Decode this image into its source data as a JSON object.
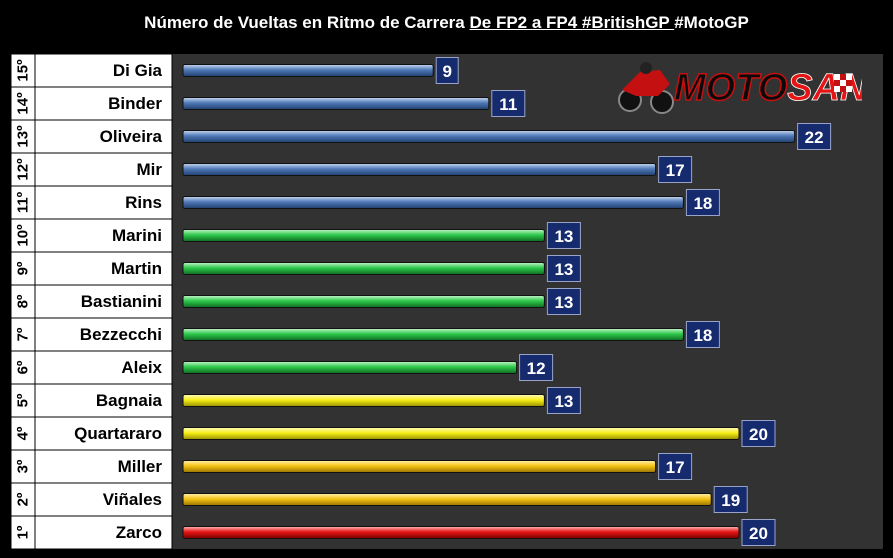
{
  "title": {
    "main": "Número de Vueltas  en Ritmo  de Carrera",
    "underlined": "De FP2 a FP4 #BritishGP ",
    "tail": " #MotoGP"
  },
  "logo": {
    "text_black": "MOTO",
    "text_red": "SAN"
  },
  "colors": {
    "background": "#000000",
    "plot_bg": "#323232",
    "label_bg": "#ffffff",
    "blue": "#4f79b8",
    "green": "#2ec94c",
    "yellow": "#f7ef18",
    "gold": "#f5c415",
    "red": "#e61515",
    "value_box": "#162a6e"
  },
  "chart_data": {
    "type": "bar",
    "orientation": "horizontal",
    "xlim": [
      0,
      24
    ],
    "grid": false,
    "rows": [
      {
        "position": "15º",
        "rider": "Di Gia",
        "value": 9,
        "color": "blue"
      },
      {
        "position": "14º",
        "rider": "Binder",
        "value": 11,
        "color": "blue"
      },
      {
        "position": "13º",
        "rider": "Oliveira",
        "value": 22,
        "color": "blue"
      },
      {
        "position": "12º",
        "rider": "Mir",
        "value": 17,
        "color": "blue"
      },
      {
        "position": "11º",
        "rider": "Rins",
        "value": 18,
        "color": "blue"
      },
      {
        "position": "10º",
        "rider": "Marini",
        "value": 13,
        "color": "green"
      },
      {
        "position": "9º",
        "rider": "Martin",
        "value": 13,
        "color": "green"
      },
      {
        "position": "8º",
        "rider": "Bastianini",
        "value": 13,
        "color": "green"
      },
      {
        "position": "7º",
        "rider": "Bezzecchi",
        "value": 18,
        "color": "green"
      },
      {
        "position": "6º",
        "rider": "Aleix",
        "value": 12,
        "color": "green"
      },
      {
        "position": "5º",
        "rider": "Bagnaia",
        "value": 13,
        "color": "yellow"
      },
      {
        "position": "4º",
        "rider": "Quartararo",
        "value": 20,
        "color": "yellow"
      },
      {
        "position": "3º",
        "rider": "Miller",
        "value": 17,
        "color": "gold"
      },
      {
        "position": "2º",
        "rider": "Viñales",
        "value": 19,
        "color": "gold"
      },
      {
        "position": "1º",
        "rider": "Zarco",
        "value": 20,
        "color": "red"
      }
    ]
  }
}
